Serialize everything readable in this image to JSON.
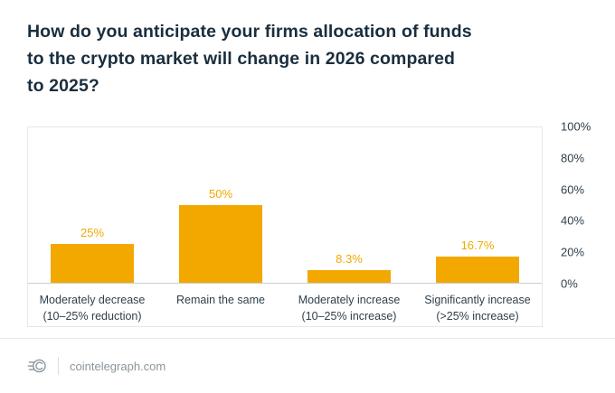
{
  "title": "How do you anticipate your firms allocation of funds to the crypto market will change in 2026 compared to 2025?",
  "title_lines": [
    "How do you anticipate your firms allocation of funds",
    "to the crypto market will change in 2026 compared",
    "to 2025?"
  ],
  "colors": {
    "bar": "#F3A800",
    "title": "#1A2E3E",
    "text": "#30404D",
    "frame": "#E5E8EA",
    "baseline": "#C9CFD4",
    "footer": "#8C969C"
  },
  "chart_data": {
    "type": "bar",
    "title": "How do you anticipate your firms allocation of funds to the crypto market will change in 2026 compared to 2025?",
    "categories": [
      "Moderately decrease (10–25% reduction)",
      "Remain the same",
      "Moderately increase (10–25% increase)",
      "Significantly increase (>25% increase)"
    ],
    "category_lines": [
      [
        "Moderately decrease",
        "(10–25% reduction)"
      ],
      [
        "Remain the same"
      ],
      [
        "Moderately increase",
        "(10–25% increase)"
      ],
      [
        "Significantly increase",
        "(>25% increase)"
      ]
    ],
    "values": [
      25,
      50,
      8.3,
      16.7
    ],
    "value_labels": [
      "25%",
      "50%",
      "8.3%",
      "16.7%"
    ],
    "y_ticks": [
      {
        "label": "100%",
        "value": 100
      },
      {
        "label": "80%",
        "value": 80
      },
      {
        "label": "60%",
        "value": 60
      },
      {
        "label": "40%",
        "value": 40
      },
      {
        "label": "20%",
        "value": 20
      },
      {
        "label": "0%",
        "value": 0
      }
    ],
    "ylim": [
      0,
      100
    ],
    "xlabel": "",
    "ylabel": "",
    "grid": false,
    "legend_position": "none",
    "y_axis_side": "right",
    "bar_color": "#F3A800"
  },
  "footer": {
    "site": "cointelegraph.com",
    "logo": "cointelegraph-coin-icon"
  }
}
